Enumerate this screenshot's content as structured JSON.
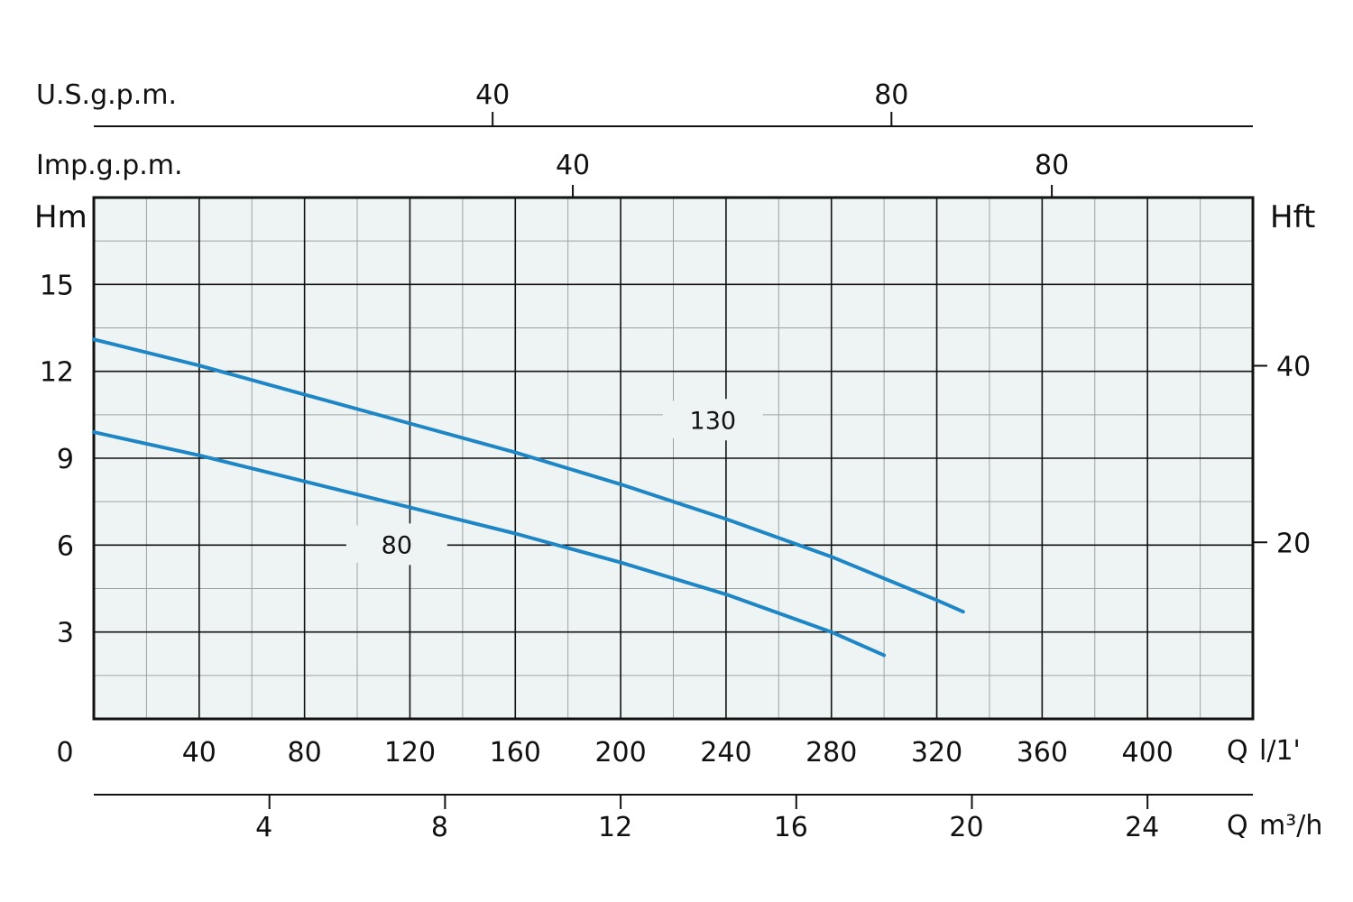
{
  "chart_data": {
    "type": "line",
    "x_axis": {
      "label": "Q",
      "unit": "l/1'",
      "min": 0,
      "max": 440,
      "ticks": [
        "0",
        "40",
        "80",
        "120",
        "160",
        "200",
        "240",
        "280",
        "320",
        "360",
        "400"
      ]
    },
    "y_axis": {
      "label": "Hm",
      "min": 0,
      "max": 18,
      "ticks": [
        "3",
        "6",
        "9",
        "12",
        "15"
      ]
    },
    "y_axis_right": {
      "label": "Hft",
      "ticks": [
        "20",
        "40"
      ]
    },
    "top_axis_us": {
      "label": "U.S.g.p.m.",
      "ticks": [
        "40",
        "80"
      ]
    },
    "top_axis_imp": {
      "label": "Imp.g.p.m.",
      "ticks": [
        "40",
        "80"
      ]
    },
    "bottom_axis_m3h": {
      "label": "Q",
      "unit": "m³/h",
      "ticks": [
        "4",
        "8",
        "12",
        "16",
        "20",
        "24"
      ]
    },
    "series": [
      {
        "name": "130",
        "color": "#1f86c6",
        "x": [
          0,
          40,
          80,
          120,
          160,
          200,
          240,
          280,
          320,
          330
        ],
        "y": [
          13.1,
          12.2,
          11.2,
          10.2,
          9.2,
          8.1,
          6.9,
          5.6,
          4.1,
          3.7
        ]
      },
      {
        "name": "80",
        "color": "#1f86c6",
        "x": [
          0,
          40,
          80,
          120,
          160,
          200,
          240,
          280,
          300
        ],
        "y": [
          9.9,
          9.1,
          8.2,
          7.3,
          6.4,
          5.4,
          4.3,
          3.0,
          2.2
        ]
      }
    ],
    "grid": true,
    "legend": "inline labels on curves"
  }
}
